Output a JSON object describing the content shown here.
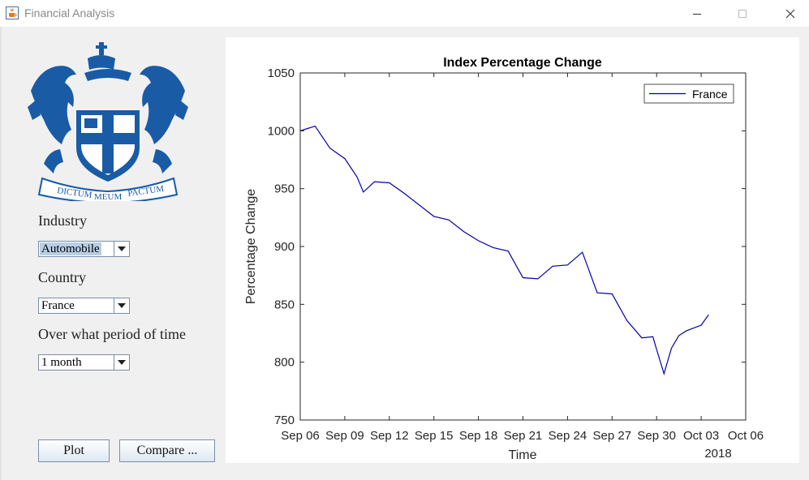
{
  "window": {
    "title": "Financial Analysis",
    "icon": "java-cup-icon",
    "controls": [
      "minimize-icon",
      "maximize-icon",
      "close-icon"
    ]
  },
  "logo": {
    "motto": [
      "DICTUM",
      "MEUM",
      "PACTUM"
    ]
  },
  "form": {
    "industry_label": "Industry",
    "industry_value": "Automobile",
    "country_label": "Country",
    "country_value": "France",
    "period_label": "Over what period of time",
    "period_value": "1 month",
    "plot_label": "Plot",
    "compare_label": "Compare ..."
  },
  "colors": {
    "line": "#0000aa",
    "accent": "#1a5ba6"
  },
  "chart_data": {
    "type": "line",
    "title": "Index Percentage Change",
    "xlabel": "Time",
    "ylabel": "Percentage Change",
    "year_label": "2018",
    "ylim": [
      750,
      1050
    ],
    "yticks": [
      750,
      800,
      850,
      900,
      950,
      1000,
      1050
    ],
    "xlim": [
      "2018-09-06",
      "2018-10-06"
    ],
    "xtick_dates": [
      "2018-09-06",
      "2018-09-09",
      "2018-09-12",
      "2018-09-15",
      "2018-09-18",
      "2018-09-21",
      "2018-09-24",
      "2018-09-27",
      "2018-09-30",
      "2018-10-03",
      "2018-10-06"
    ],
    "xtick_labels": [
      "Sep 06",
      "Sep 09",
      "Sep 12",
      "Sep 15",
      "Sep 18",
      "Sep 21",
      "Sep 24",
      "Sep 27",
      "Sep 30",
      "Oct 03",
      "Oct 06"
    ],
    "legend": {
      "position": "top-right"
    },
    "grid": false,
    "series": [
      {
        "name": "France",
        "x": [
          "2018-09-06 00:00",
          "2018-09-07 00:00",
          "2018-09-08 00:00",
          "2018-09-09 00:00",
          "2018-09-09 20:00",
          "2018-09-10 06:00",
          "2018-09-11 00:00",
          "2018-09-12 00:00",
          "2018-09-13 00:00",
          "2018-09-14 00:00",
          "2018-09-15 00:00",
          "2018-09-16 00:00",
          "2018-09-17 00:00",
          "2018-09-18 00:00",
          "2018-09-19 00:00",
          "2018-09-20 00:00",
          "2018-09-21 00:00",
          "2018-09-22 00:00",
          "2018-09-23 00:00",
          "2018-09-24 00:00",
          "2018-09-25 00:00",
          "2018-09-26 00:00",
          "2018-09-27 00:00",
          "2018-09-28 00:00",
          "2018-09-29 00:00",
          "2018-09-29 18:00",
          "2018-09-30 00:00",
          "2018-09-30 12:00",
          "2018-10-01 00:00",
          "2018-10-01 12:00",
          "2018-10-02 00:00",
          "2018-10-03 00:00",
          "2018-10-03 12:00"
        ],
        "y": [
          1000,
          1004,
          985,
          976,
          960,
          947,
          956,
          955,
          946,
          936,
          926,
          923,
          913,
          905,
          899,
          896,
          873,
          872,
          883,
          884,
          895,
          860,
          859,
          836,
          821,
          822,
          811,
          790,
          812,
          823,
          827,
          832,
          841
        ]
      }
    ]
  }
}
